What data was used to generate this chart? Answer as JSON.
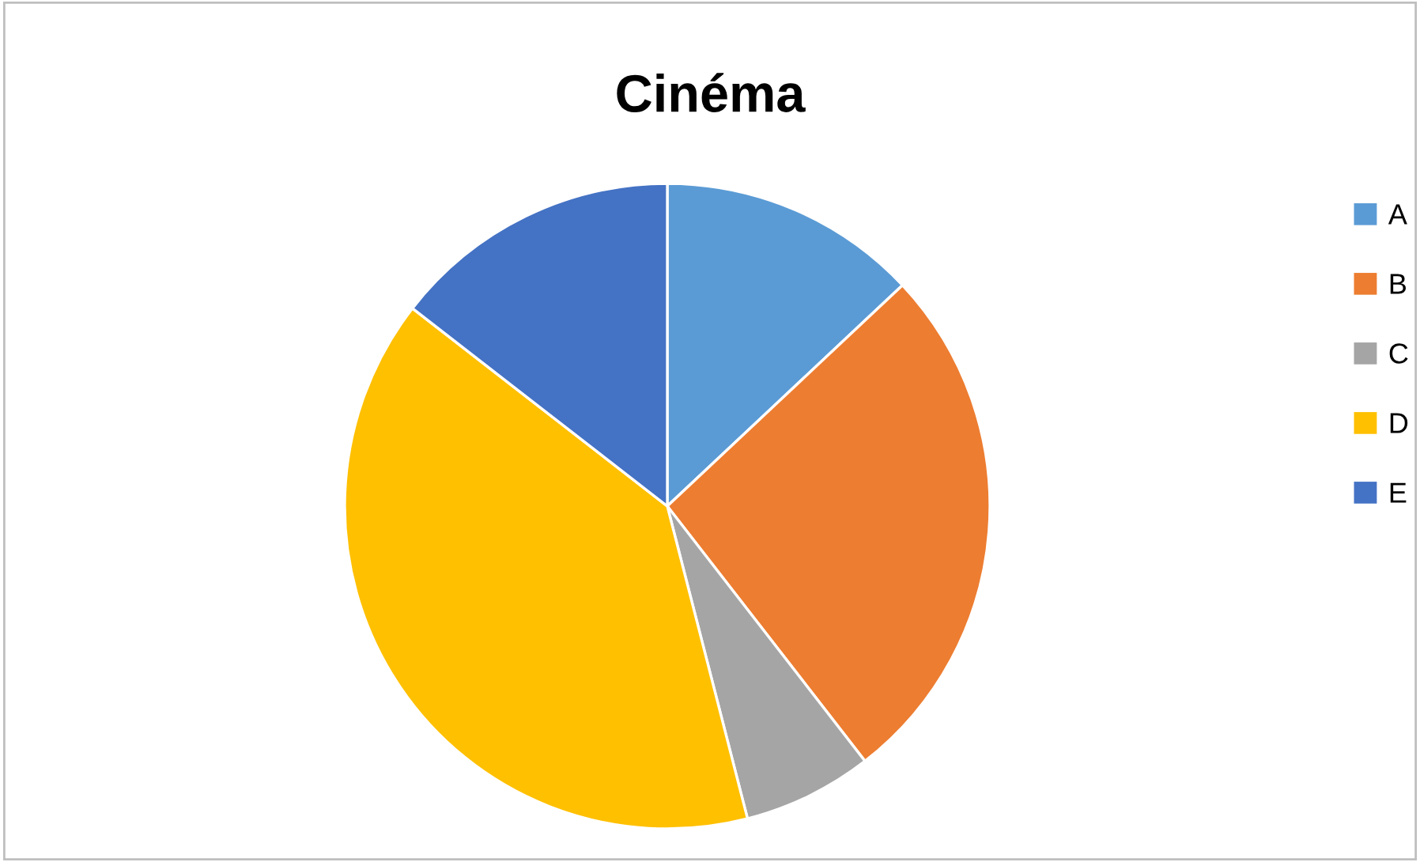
{
  "chart_data": {
    "type": "pie",
    "title": "Cinéma",
    "categories": [
      "A",
      "B",
      "C",
      "D",
      "E"
    ],
    "values": [
      13,
      26.5,
      6.5,
      39.5,
      14.5
    ],
    "colors": [
      "#5b9bd5",
      "#ed7d31",
      "#a5a5a5",
      "#ffc000",
      "#4472c4"
    ],
    "legend": "right"
  }
}
